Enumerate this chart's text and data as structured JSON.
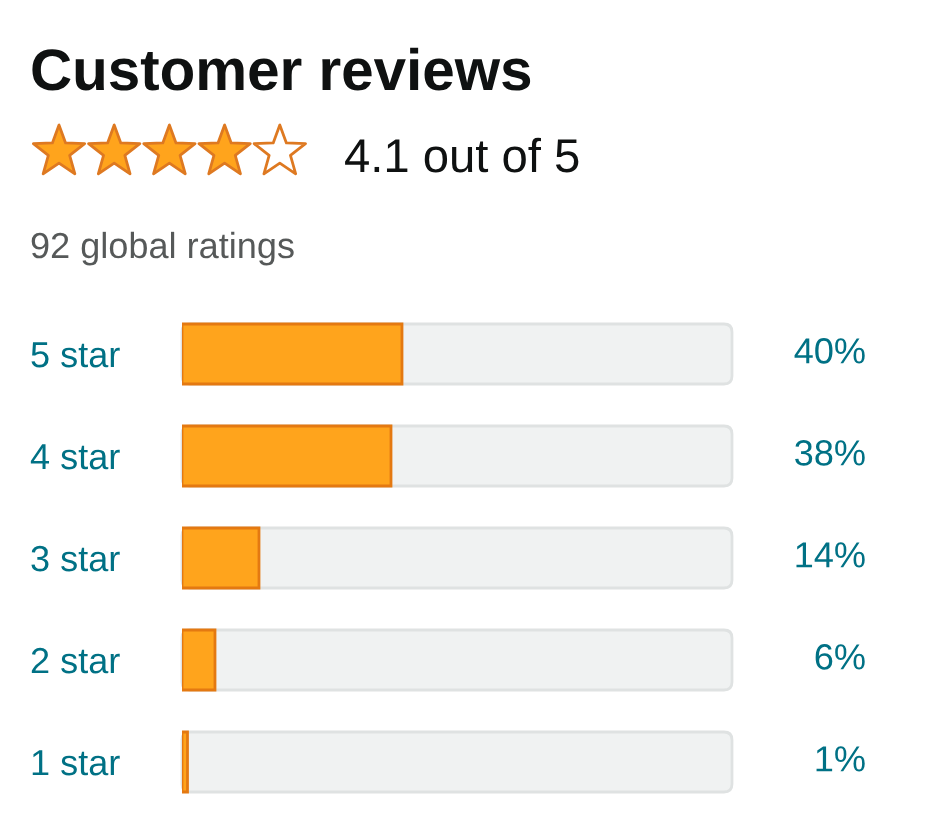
{
  "chart_data": {
    "type": "bar",
    "orientation": "horizontal",
    "title": "Customer reviews",
    "subtitle": "4.1 out of 5",
    "annotations": [
      "92 global ratings"
    ],
    "categories": [
      "5 star",
      "4 star",
      "3 star",
      "2 star",
      "1 star"
    ],
    "values": [
      40,
      38,
      14,
      6,
      1
    ],
    "value_labels": [
      "40%",
      "38%",
      "14%",
      "6%",
      "1%"
    ],
    "color": "#ffa41c",
    "xlim": [
      0,
      100
    ],
    "tick_labels": "y"
  }
}
